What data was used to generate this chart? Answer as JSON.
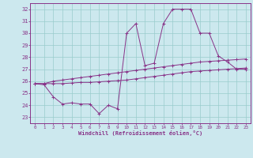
{
  "xlabel": "Windchill (Refroidissement éolien,°C)",
  "bg_color": "#cce8ee",
  "line_color": "#883388",
  "grid_color": "#99cccc",
  "spine_color": "#883388",
  "xlim": [
    -0.5,
    23.5
  ],
  "ylim": [
    22.5,
    32.5
  ],
  "xticks": [
    0,
    1,
    2,
    3,
    4,
    5,
    6,
    7,
    8,
    9,
    10,
    11,
    12,
    13,
    14,
    15,
    16,
    17,
    18,
    19,
    20,
    21,
    22,
    23
  ],
  "yticks": [
    23,
    24,
    25,
    26,
    27,
    28,
    29,
    30,
    31,
    32
  ],
  "series": [
    [
      25.8,
      25.8,
      25.8,
      25.8,
      25.85,
      25.9,
      25.9,
      25.95,
      26.0,
      26.05,
      26.1,
      26.2,
      26.3,
      26.4,
      26.5,
      26.6,
      26.7,
      26.8,
      26.85,
      26.9,
      26.95,
      27.0,
      27.05,
      27.1
    ],
    [
      25.8,
      25.8,
      26.0,
      26.1,
      26.2,
      26.3,
      26.4,
      26.5,
      26.6,
      26.7,
      26.8,
      26.9,
      27.0,
      27.1,
      27.2,
      27.3,
      27.4,
      27.5,
      27.6,
      27.65,
      27.7,
      27.75,
      27.8,
      27.85
    ],
    [
      25.8,
      25.7,
      24.7,
      24.1,
      24.2,
      24.1,
      24.1,
      23.3,
      24.0,
      23.7,
      30.0,
      30.8,
      27.3,
      27.5,
      30.8,
      32.0,
      32.0,
      32.0,
      30.0,
      30.0,
      28.1,
      27.6,
      27.0,
      27.0
    ]
  ]
}
